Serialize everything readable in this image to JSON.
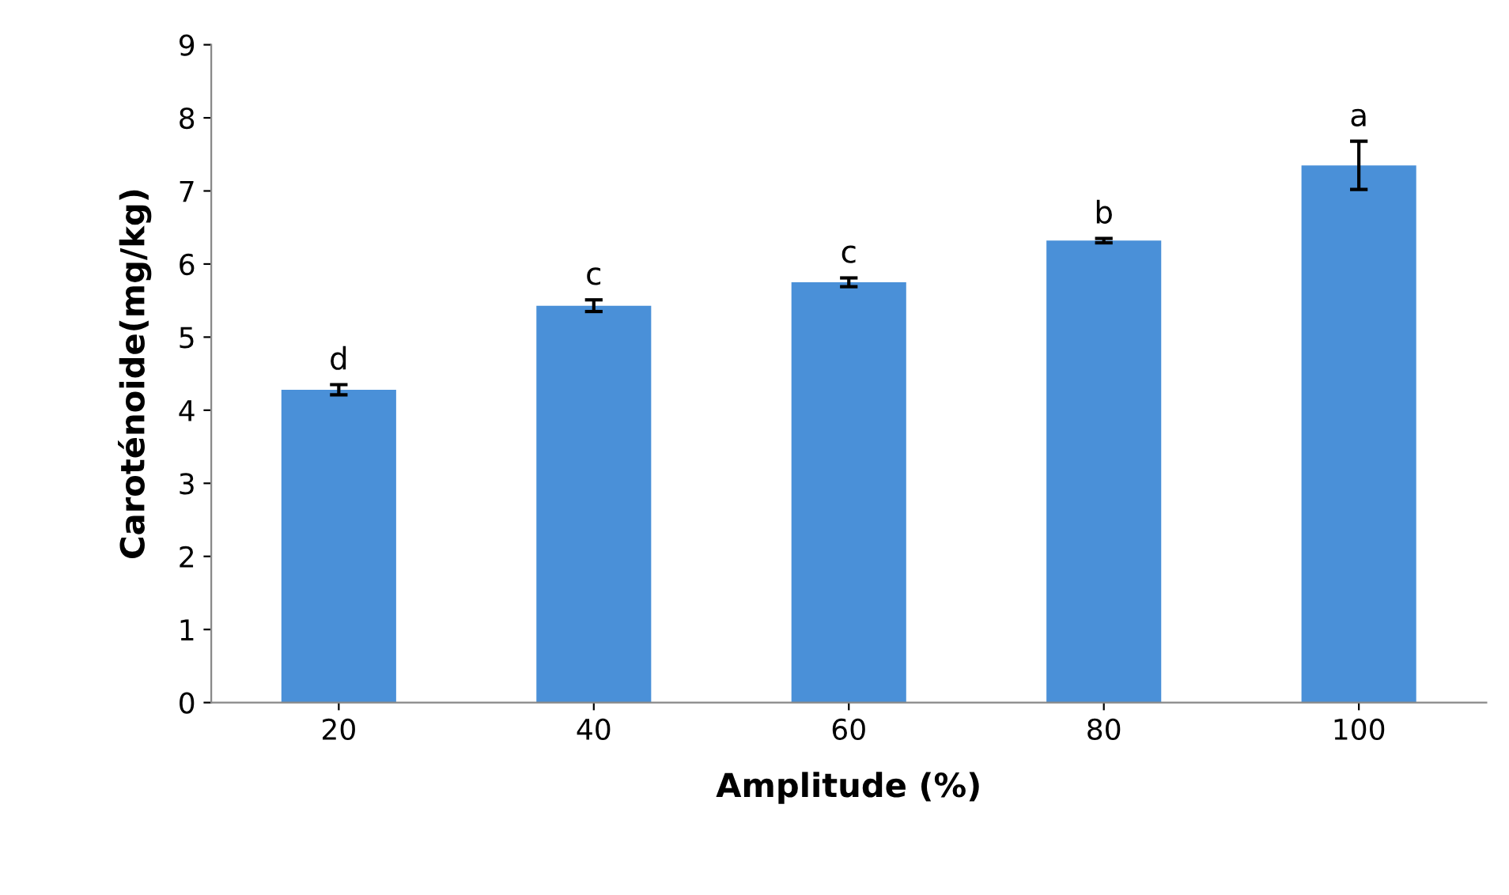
{
  "chart_data": {
    "type": "bar",
    "xlabel": "Amplitude (%)",
    "ylabel": "Caroténoide(mg/kg)",
    "categories": [
      "20",
      "40",
      "60",
      "80",
      "100"
    ],
    "values": [
      4.28,
      5.43,
      5.75,
      6.32,
      7.35
    ],
    "errors": [
      0.07,
      0.08,
      0.06,
      0.03,
      0.33
    ],
    "color": "#4a90d8",
    "ylim": [
      0,
      9
    ],
    "yticks": [
      0,
      1,
      2,
      3,
      4,
      5,
      6,
      7,
      8,
      9
    ],
    "grid": false,
    "annotations": [
      {
        "text": "d",
        "x": "20",
        "y": 4.35
      },
      {
        "text": "c",
        "x": "40",
        "y": 5.51
      },
      {
        "text": "c",
        "x": "60",
        "y": 5.81
      },
      {
        "text": "b",
        "x": "80",
        "y": 6.35
      },
      {
        "text": "a",
        "x": "100",
        "y": 7.68
      }
    ]
  }
}
